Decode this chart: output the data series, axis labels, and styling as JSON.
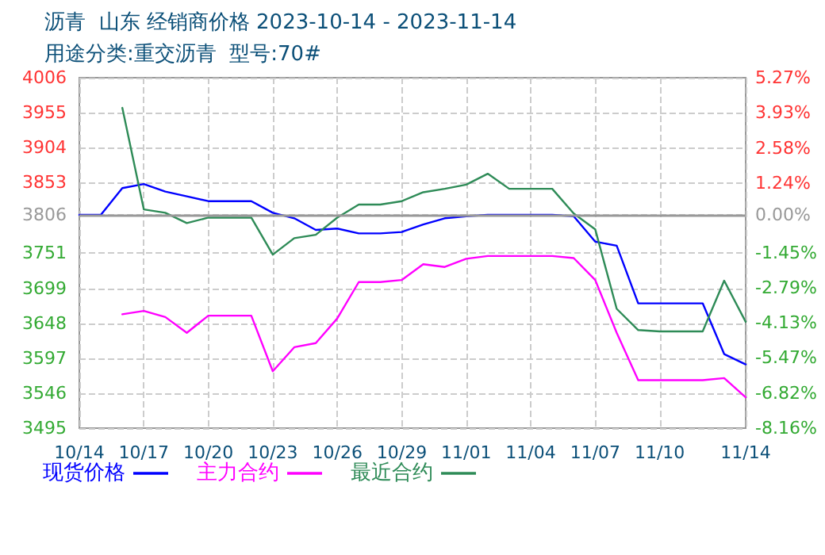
{
  "chart_data": {
    "type": "line",
    "title": "沥青  山东 经销商价格 2023-10-14 - 2023-11-14",
    "subtitle": "用途分类:重交沥青  型号:70#",
    "x": [
      "2023-10-14",
      "2023-10-15",
      "2023-10-16",
      "2023-10-17",
      "2023-10-18",
      "2023-10-19",
      "2023-10-20",
      "2023-10-21",
      "2023-10-22",
      "2023-10-23",
      "2023-10-24",
      "2023-10-25",
      "2023-10-26",
      "2023-10-27",
      "2023-10-28",
      "2023-10-29",
      "2023-10-30",
      "2023-10-31",
      "2023-11-01",
      "2023-11-02",
      "2023-11-03",
      "2023-11-04",
      "2023-11-05",
      "2023-11-06",
      "2023-11-07",
      "2023-11-08",
      "2023-11-09",
      "2023-11-10",
      "2023-11-11",
      "2023-11-12",
      "2023-11-13",
      "2023-11-14"
    ],
    "series": [
      {
        "name": "现货价格",
        "color": "#0000ff",
        "values": [
          3806,
          3806,
          3845,
          3851,
          3840,
          3833,
          3826,
          3826,
          3826,
          3809,
          3801,
          3784,
          3786,
          3779,
          3779,
          3781,
          3792,
          3801,
          3804,
          3806,
          3806,
          3806,
          3806,
          3804,
          3767,
          3761,
          3677,
          3677,
          3677,
          3677,
          3603,
          3588
        ]
      },
      {
        "name": "主力合约",
        "color": "#ff00ff",
        "values": [
          null,
          null,
          3661,
          3666,
          3657,
          3634,
          3659,
          3659,
          3659,
          3578,
          3613,
          3619,
          3655,
          3708,
          3708,
          3711,
          3734,
          3730,
          3742,
          3746,
          3746,
          3746,
          3746,
          3743,
          3711,
          3634,
          3565,
          3565,
          3565,
          3565,
          3568,
          3540
        ]
      },
      {
        "name": "最近合约",
        "color": "#2e8b57",
        "values": [
          null,
          null,
          3962,
          3814,
          3809,
          3794,
          3802,
          3802,
          3802,
          3748,
          3772,
          3777,
          3802,
          3821,
          3821,
          3826,
          3839,
          3844,
          3850,
          3866,
          3844,
          3844,
          3844,
          3808,
          3785,
          3669,
          3638,
          3636,
          3636,
          3636,
          3710,
          3650
        ]
      }
    ],
    "xlim": [
      "2023-10-14",
      "2023-11-14"
    ],
    "xticks": [
      {
        "value": "2023-10-14",
        "label": "10/14"
      },
      {
        "value": "2023-10-17",
        "label": "10/17"
      },
      {
        "value": "2023-10-20",
        "label": "10/20"
      },
      {
        "value": "2023-10-23",
        "label": "10/23"
      },
      {
        "value": "2023-10-26",
        "label": "10/26"
      },
      {
        "value": "2023-10-29",
        "label": "10/29"
      },
      {
        "value": "2023-11-01",
        "label": "11/01"
      },
      {
        "value": "2023-11-04",
        "label": "11/04"
      },
      {
        "value": "2023-11-07",
        "label": "11/07"
      },
      {
        "value": "2023-11-10",
        "label": "11/10"
      },
      {
        "value": "2023-11-14",
        "label": "11/14"
      }
    ],
    "ylim": [
      3495,
      4006
    ],
    "yticks": [
      3495,
      3546,
      3597,
      3648,
      3699,
      3751,
      3806,
      3853,
      3904,
      3955,
      4006
    ],
    "y2lim": [
      -8.16,
      5.27
    ],
    "y2ticks": [
      {
        "value": -8.16,
        "label": "-8.16%"
      },
      {
        "value": -6.82,
        "label": "-6.82%"
      },
      {
        "value": -5.47,
        "label": "-5.47%"
      },
      {
        "value": -4.13,
        "label": "-4.13%"
      },
      {
        "value": -2.79,
        "label": "-2.79%"
      },
      {
        "value": -1.45,
        "label": "-1.45%"
      },
      {
        "value": 0,
        "label": "0.00%"
      },
      {
        "value": 1.24,
        "label": "1.24%"
      },
      {
        "value": 2.58,
        "label": "2.58%"
      },
      {
        "value": 3.93,
        "label": "3.93%"
      },
      {
        "value": 5.27,
        "label": "5.27%"
      }
    ],
    "ref_lines": [
      {
        "axis": "y",
        "value": 3806,
        "color": "#999999"
      }
    ],
    "grid": true,
    "legend": "bottom left",
    "marker": "none",
    "line_style": "solid"
  }
}
